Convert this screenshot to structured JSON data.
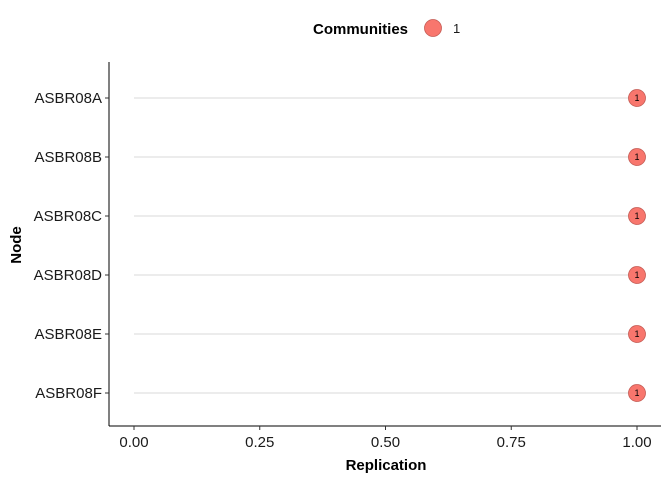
{
  "chart_data": {
    "type": "scatter",
    "xlabel": "Replication",
    "ylabel": "Node",
    "xlim": [
      0,
      1
    ],
    "x_ticks": [
      "0.00",
      "0.25",
      "0.50",
      "0.75",
      "1.00"
    ],
    "categories": [
      "ASBR08A",
      "ASBR08B",
      "ASBR08C",
      "ASBR08D",
      "ASBR08E",
      "ASBR08F"
    ],
    "series": [
      {
        "name": "1",
        "values": [
          1.0,
          1.0,
          1.0,
          1.0,
          1.0,
          1.0
        ],
        "labels": [
          "1",
          "1",
          "1",
          "1",
          "1",
          "1"
        ]
      }
    ],
    "legend": {
      "title": "Communities",
      "position": "top",
      "entries": [
        "1"
      ]
    },
    "grid": "horizontal-major",
    "colors": {
      "point": "#f8766d",
      "grid": "#d9d9d9",
      "axis": "#000000"
    }
  }
}
